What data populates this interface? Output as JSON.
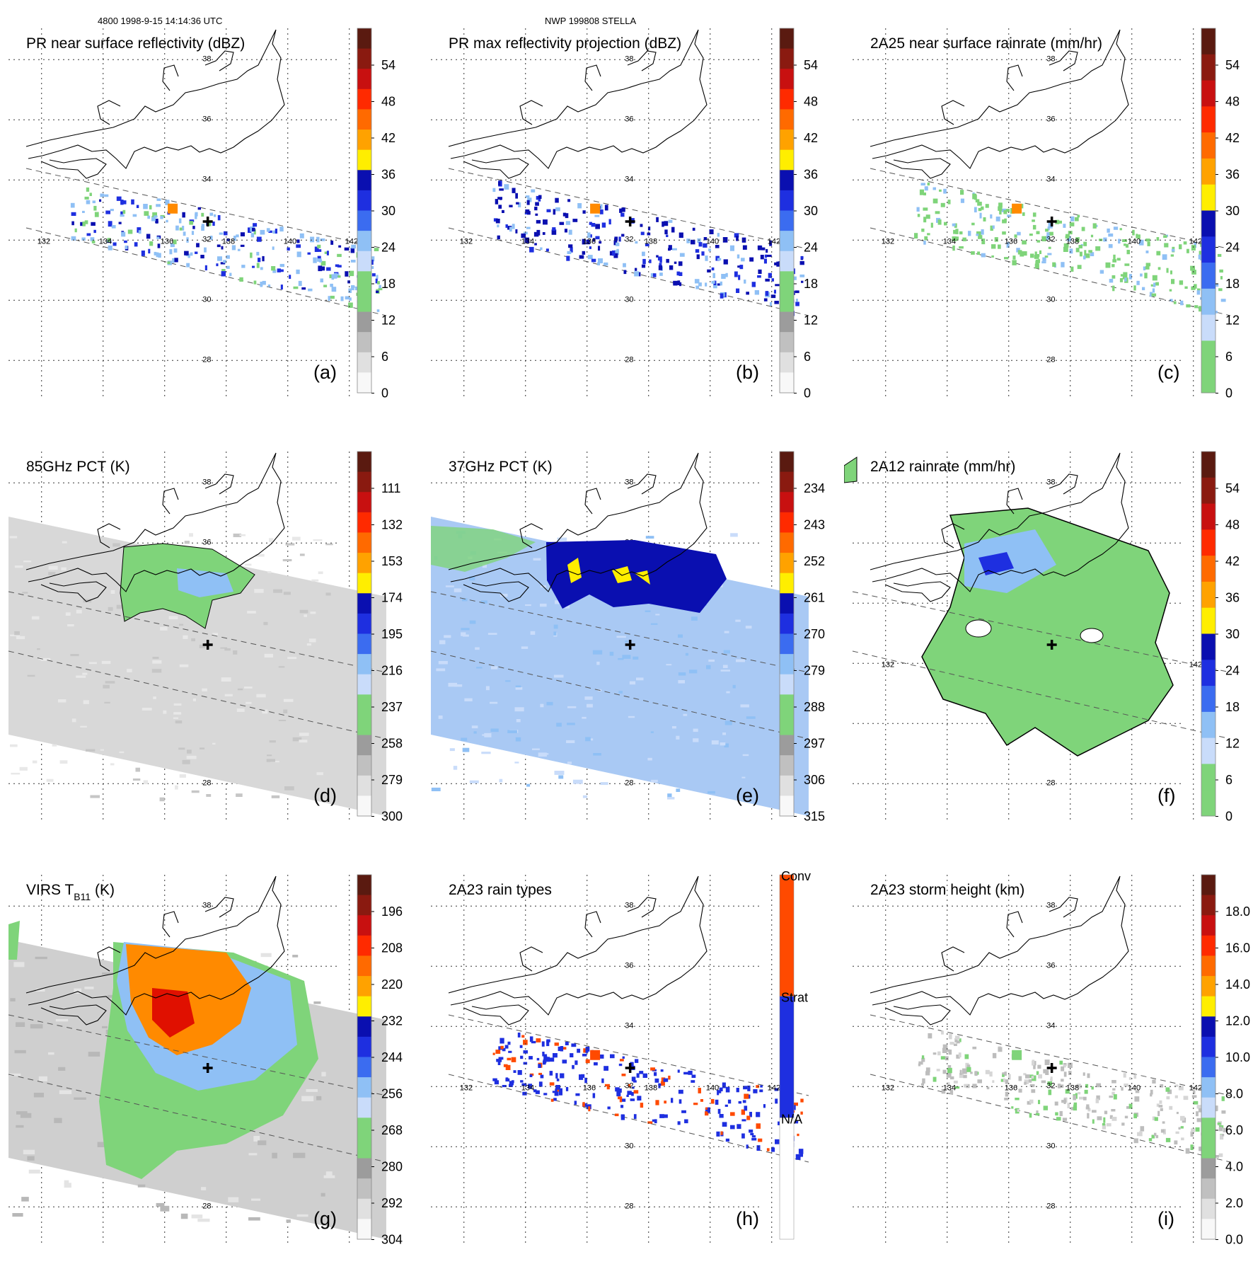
{
  "header": {
    "left": "4800 1998-9-15 14:14:36 UTC",
    "center": "NWP 199808 STELLA"
  },
  "map_labels": {
    "lon": [
      "132",
      "134",
      "136",
      "138",
      "140",
      "142"
    ],
    "lat": [
      "38",
      "36",
      "34",
      "32",
      "30",
      "28"
    ]
  },
  "colors": {
    "land_green": "#7fd47a",
    "light_blue": "#8fc0f5",
    "blue": "#1e2fe0",
    "dark_blue": "#0a0fb0",
    "yellow": "#ffee00",
    "orange": "#ff8a00",
    "red": "#e01000",
    "gray": "#bdbdbd"
  },
  "panels": [
    {
      "id": "a",
      "title": "PR near surface reflectivity (dBZ)",
      "label": "(a)",
      "type": "swath",
      "ticks": [
        "54",
        "48",
        "42",
        "36",
        "30",
        "24",
        "18",
        "12",
        "6",
        "0"
      ],
      "colorbar": [
        "#5a1a10",
        "#8a1a10",
        "#c81010",
        "#ff2a00",
        "#ff6a00",
        "#ffa200",
        "#ffee00",
        "#0a0fb0",
        "#1e2fe0",
        "#3b6cf0",
        "#8fc0f5",
        "#c9dcfa",
        "#7fd47a",
        "#7fd47a",
        "#9c9c9c",
        "#c0c0c0",
        "#e0e0e0",
        "#f8f8f8"
      ]
    },
    {
      "id": "b",
      "title": "PR max reflectivity projection (dBZ)",
      "label": "(b)",
      "type": "swath",
      "ticks": [
        "54",
        "48",
        "42",
        "36",
        "30",
        "24",
        "18",
        "12",
        "6",
        "0"
      ],
      "colorbar": [
        "#5a1a10",
        "#8a1a10",
        "#c81010",
        "#ff2a00",
        "#ff6a00",
        "#ffa200",
        "#ffee00",
        "#0a0fb0",
        "#1e2fe0",
        "#3b6cf0",
        "#8fc0f5",
        "#c9dcfa",
        "#7fd47a",
        "#7fd47a",
        "#9c9c9c",
        "#c0c0c0",
        "#e0e0e0",
        "#f8f8f8"
      ]
    },
    {
      "id": "c",
      "title": "2A25 near surface rainrate (mm/hr)",
      "label": "(c)",
      "type": "swath",
      "ticks": [
        "54",
        "48",
        "42",
        "36",
        "30",
        "24",
        "18",
        "12",
        "6",
        "0"
      ],
      "colorbar": [
        "#5a1a10",
        "#8a1a10",
        "#c81010",
        "#ff2a00",
        "#ff6a00",
        "#ffa200",
        "#ffee00",
        "#0a0fb0",
        "#1e2fe0",
        "#3b6cf0",
        "#8fc0f5",
        "#c9dcfa",
        "#7fd47a",
        "#7fd47a"
      ]
    },
    {
      "id": "d",
      "title": "85GHz PCT (K)",
      "label": "(d)",
      "type": "wide",
      "ticks": [
        "111",
        "132",
        "153",
        "174",
        "195",
        "216",
        "237",
        "258",
        "279",
        "300"
      ],
      "colorbar": [
        "#5a1a10",
        "#8a1a10",
        "#c81010",
        "#ff2a00",
        "#ff6a00",
        "#ffa200",
        "#ffee00",
        "#0a0fb0",
        "#1e2fe0",
        "#3b6cf0",
        "#8fc0f5",
        "#c9dcfa",
        "#7fd47a",
        "#7fd47a",
        "#9c9c9c",
        "#c0c0c0",
        "#e0e0e0",
        "#f8f8f8"
      ]
    },
    {
      "id": "e",
      "title": "37GHz PCT (K)",
      "label": "(e)",
      "type": "wide",
      "ticks": [
        "234",
        "243",
        "252",
        "261",
        "270",
        "279",
        "288",
        "297",
        "306",
        "315"
      ],
      "colorbar": [
        "#5a1a10",
        "#8a1a10",
        "#c81010",
        "#ff2a00",
        "#ff6a00",
        "#ffa200",
        "#ffee00",
        "#0a0fb0",
        "#1e2fe0",
        "#3b6cf0",
        "#8fc0f5",
        "#c9dcfa",
        "#7fd47a",
        "#7fd47a",
        "#9c9c9c",
        "#c0c0c0",
        "#e0e0e0",
        "#f8f8f8"
      ]
    },
    {
      "id": "f",
      "title": "2A12 rainrate (mm/hr)",
      "label": "(f)",
      "type": "rain",
      "ticks": [
        "54",
        "48",
        "42",
        "36",
        "30",
        "24",
        "18",
        "12",
        "6",
        "0"
      ],
      "colorbar": [
        "#5a1a10",
        "#8a1a10",
        "#c81010",
        "#ff2a00",
        "#ff6a00",
        "#ffa200",
        "#ffee00",
        "#0a0fb0",
        "#1e2fe0",
        "#3b6cf0",
        "#8fc0f5",
        "#c9dcfa",
        "#7fd47a",
        "#7fd47a"
      ]
    },
    {
      "id": "g",
      "title": "VIRS T",
      "title_sub": "B11",
      "title_tail": " (K)",
      "label": "(g)",
      "type": "ir",
      "ticks": [
        "196",
        "208",
        "220",
        "232",
        "244",
        "256",
        "268",
        "280",
        "292",
        "304"
      ],
      "colorbar": [
        "#5a1a10",
        "#8a1a10",
        "#c81010",
        "#ff2a00",
        "#ff6a00",
        "#ffa200",
        "#ffee00",
        "#0a0fb0",
        "#1e2fe0",
        "#3b6cf0",
        "#8fc0f5",
        "#c9dcfa",
        "#7fd47a",
        "#7fd47a",
        "#9c9c9c",
        "#c0c0c0",
        "#e0e0e0",
        "#f8f8f8"
      ]
    },
    {
      "id": "h",
      "title": "2A23 rain types",
      "label": "(h)",
      "type": "swath",
      "ticks": [
        "Conv",
        "Strat",
        "N/A"
      ],
      "colorbar": [
        "#ff4a00",
        "#1e2fe0",
        "#ffffff"
      ]
    },
    {
      "id": "i",
      "title": "2A23 storm height (km)",
      "label": "(i)",
      "type": "swath",
      "ticks": [
        "18.0",
        "16.0",
        "14.0",
        "12.0",
        "10.0",
        "8.0",
        "6.0",
        "4.0",
        "2.0",
        "0.0"
      ],
      "colorbar": [
        "#5a1a10",
        "#8a1a10",
        "#c81010",
        "#ff2a00",
        "#ff6a00",
        "#ffa200",
        "#ffee00",
        "#0a0fb0",
        "#1e2fe0",
        "#3b6cf0",
        "#8fc0f5",
        "#c9dcfa",
        "#7fd47a",
        "#7fd47a",
        "#9c9c9c",
        "#c0c0c0",
        "#e0e0e0",
        "#f8f8f8"
      ]
    }
  ]
}
